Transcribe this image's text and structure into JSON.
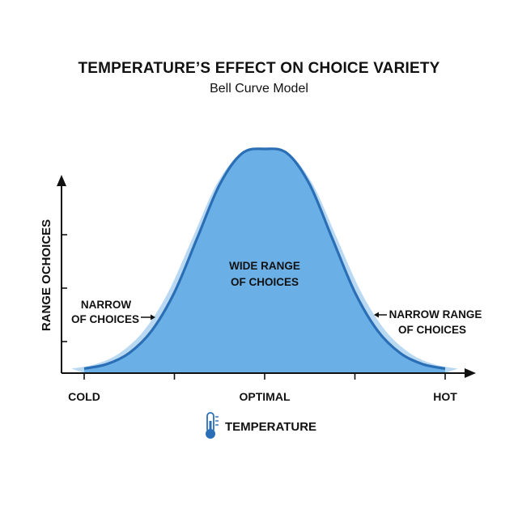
{
  "chart_data": {
    "type": "area",
    "title": "TEMPERATURE’S EFFECT ON CHOICE VARIETY",
    "subtitle": "Bell Curve Model",
    "xlabel": "TEMPERATURE",
    "ylabel": "RANGE OCHOICES",
    "x_ticks": [
      "COLD",
      "OPTIMAL",
      "HOT"
    ],
    "x_range": [
      0,
      4
    ],
    "ylim": [
      0,
      1.2
    ],
    "series": [
      {
        "name": "Choice variety",
        "x": [
          0,
          0.25,
          0.5,
          0.75,
          1,
          1.25,
          1.5,
          1.75,
          2,
          2.25,
          2.5,
          2.75,
          3,
          3.25,
          3.5,
          3.75,
          4
        ],
        "values": [
          0.02,
          0.04,
          0.09,
          0.19,
          0.36,
          0.6,
          0.84,
          0.98,
          1.0,
          0.98,
          0.84,
          0.6,
          0.36,
          0.19,
          0.09,
          0.04,
          0.02
        ]
      }
    ],
    "annotations": [
      {
        "id": "center",
        "lines": [
          "WIDE RANGE",
          "OF CHOICES"
        ]
      },
      {
        "id": "left",
        "lines": [
          "NARROW",
          "OF CHOICES"
        ]
      },
      {
        "id": "right",
        "lines": [
          "NARROW RANGE",
          "OF CHOICES"
        ]
      }
    ],
    "colors": {
      "fill": "#6aafe6",
      "fill_light": "#b9d9f2",
      "stroke": "#2a6fb6",
      "axis": "#111111"
    }
  }
}
